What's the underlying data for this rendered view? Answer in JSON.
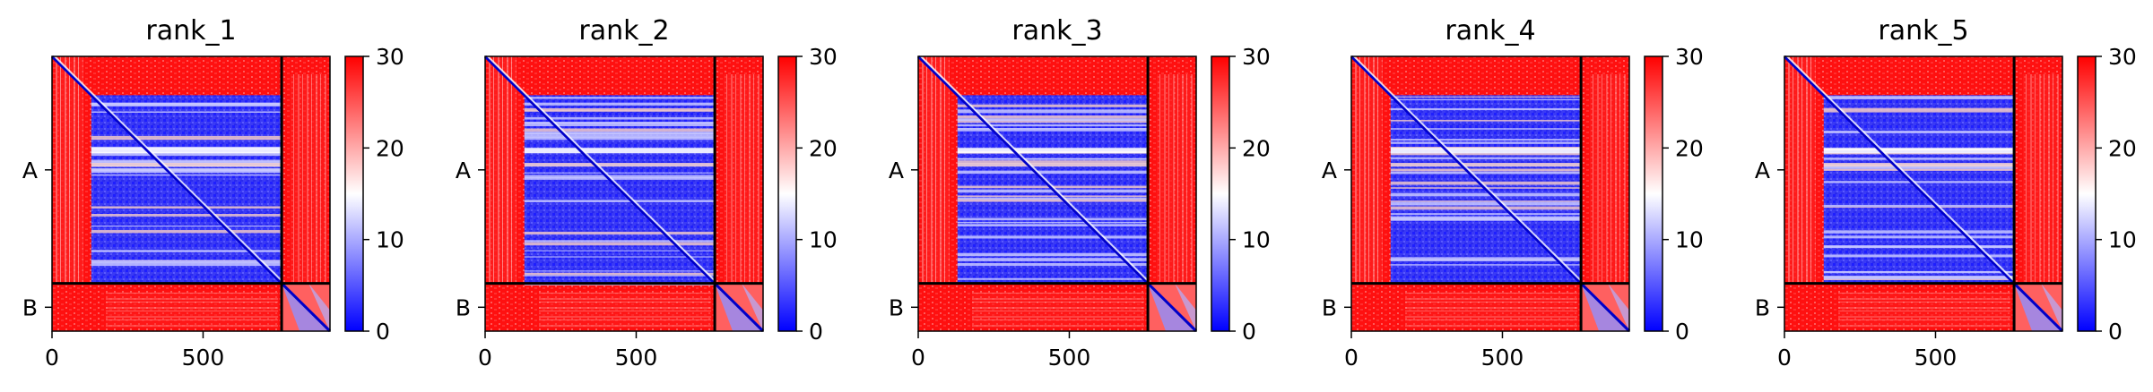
{
  "figure": {
    "chart_data": [
      {
        "type": "heatmap",
        "title": "rank_1",
        "xticks": [
          "0",
          "500"
        ],
        "chains": [
          "A",
          "B"
        ],
        "chain_lengths": [
          760,
          160
        ],
        "colorbar": {
          "min": 0,
          "max": 30,
          "ticks": [
            "0",
            "10",
            "20",
            "30"
          ],
          "colors": [
            "#0000ff",
            "#ffffff",
            "#ff0000"
          ]
        }
      },
      {
        "type": "heatmap",
        "title": "rank_2",
        "xticks": [
          "0",
          "500"
        ],
        "chains": [
          "A",
          "B"
        ],
        "chain_lengths": [
          760,
          160
        ],
        "colorbar": {
          "min": 0,
          "max": 30,
          "ticks": [
            "0",
            "10",
            "20",
            "30"
          ],
          "colors": [
            "#0000ff",
            "#ffffff",
            "#ff0000"
          ]
        }
      },
      {
        "type": "heatmap",
        "title": "rank_3",
        "xticks": [
          "0",
          "500"
        ],
        "chains": [
          "A",
          "B"
        ],
        "chain_lengths": [
          760,
          160
        ],
        "colorbar": {
          "min": 0,
          "max": 30,
          "ticks": [
            "0",
            "10",
            "20",
            "30"
          ],
          "colors": [
            "#0000ff",
            "#ffffff",
            "#ff0000"
          ]
        }
      },
      {
        "type": "heatmap",
        "title": "rank_4",
        "xticks": [
          "0",
          "500"
        ],
        "chains": [
          "A",
          "B"
        ],
        "chain_lengths": [
          760,
          160
        ],
        "colorbar": {
          "min": 0,
          "max": 30,
          "ticks": [
            "0",
            "10",
            "20",
            "30"
          ],
          "colors": [
            "#0000ff",
            "#ffffff",
            "#ff0000"
          ]
        }
      },
      {
        "type": "heatmap",
        "title": "rank_5",
        "xticks": [
          "0",
          "500"
        ],
        "chains": [
          "A",
          "B"
        ],
        "chain_lengths": [
          760,
          160
        ],
        "colorbar": {
          "min": 0,
          "max": 30,
          "ticks": [
            "0",
            "10",
            "20",
            "30"
          ],
          "colors": [
            "#0000ff",
            "#ffffff",
            "#ff0000"
          ]
        }
      }
    ]
  }
}
